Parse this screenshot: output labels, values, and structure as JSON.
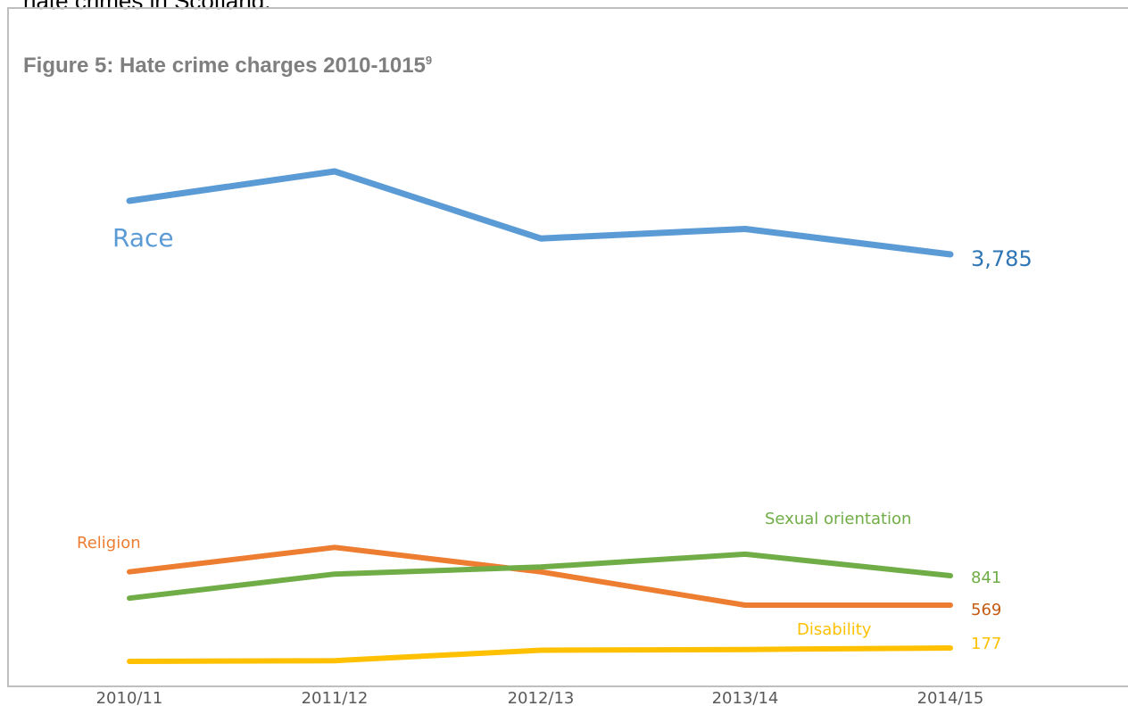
{
  "page": {
    "top_text": "hate crimes in Scotland."
  },
  "figure": {
    "title": "Figure 5: Hate crime charges 2010-1015",
    "footnote_marker": "9"
  },
  "chart_data": {
    "type": "line",
    "title": "Figure 5: Hate crime charges 2010-1015",
    "xlabel": "",
    "ylabel": "",
    "categories": [
      "2010/11",
      "2011/12",
      "2012/13",
      "2013/14",
      "2014/15"
    ],
    "grid": false,
    "series": [
      {
        "name": "Race",
        "color": "#5b9bd5",
        "label_color": "#5b9bd5",
        "value_color": "#2e75b6",
        "values": [
          4549,
          4970,
          4012,
          4148,
          3785
        ],
        "end_label": "3,785"
      },
      {
        "name": "Religion",
        "color": "#ed7d31",
        "label_color": "#ed7d31",
        "value_color": "#c55a11",
        "values": [
          876,
          1100,
          876,
          569,
          569
        ],
        "end_label": "569"
      },
      {
        "name": "Sexual orientation",
        "color": "#70ad47",
        "label_color": "#70ad47",
        "value_color": "#70ad47",
        "values": [
          633,
          856,
          920,
          1038,
          841
        ],
        "end_label": "841"
      },
      {
        "name": "Disability",
        "color": "#ffc000",
        "label_color": "#ffc000",
        "value_color": "#ffc000",
        "values": [
          56,
          63,
          157,
          163,
          177
        ],
        "end_label": "177"
      }
    ]
  }
}
